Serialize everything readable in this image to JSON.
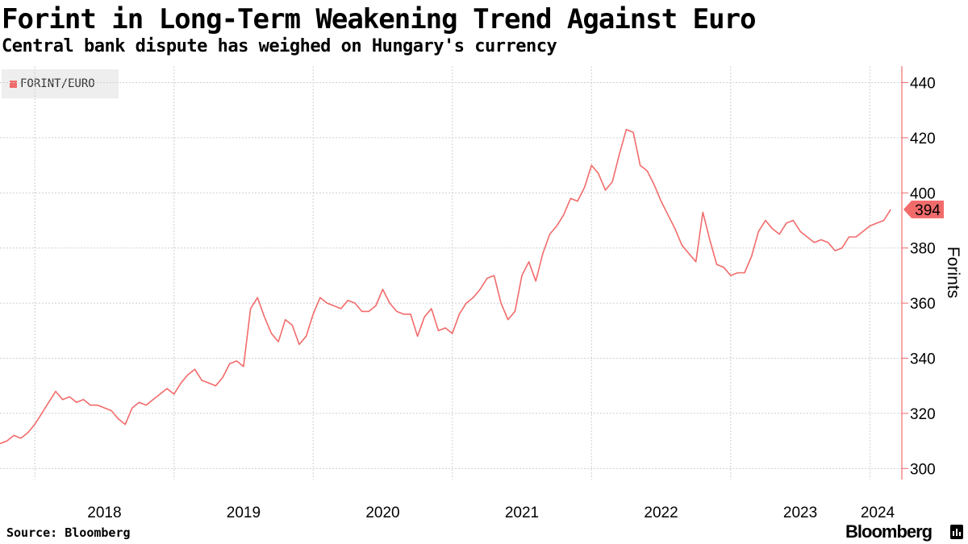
{
  "header": {
    "title": "Forint in Long-Term Weakening Trend Against Euro",
    "subtitle": "Central bank dispute has weighed on Hungary's currency"
  },
  "legend": {
    "label": "FORINT/EURO",
    "color": "#f26b6b"
  },
  "footer": {
    "source": "Source: Bloomberg",
    "brand": "Bloomberg"
  },
  "chart_data": {
    "type": "line",
    "title": "Forint in Long-Term Weakening Trend Against Euro",
    "subtitle": "Central bank dispute has weighed on Hungary's currency",
    "xlabel": "",
    "ylabel": "Forints",
    "ylim": [
      296,
      446
    ],
    "yticks": [
      300,
      320,
      340,
      360,
      380,
      400,
      420,
      440
    ],
    "xticks": [
      "2018",
      "2019",
      "2020",
      "2021",
      "2022",
      "2023",
      "2024"
    ],
    "x_range": [
      2017.75,
      2024.23
    ],
    "grid": true,
    "legend_position": "top-left",
    "last_value_label": "394",
    "line_color": "#f26b6b",
    "series": [
      {
        "name": "FORINT/EURO",
        "x": [
          2017.75,
          2017.8,
          2017.85,
          2017.9,
          2017.95,
          2018.0,
          2018.05,
          2018.1,
          2018.15,
          2018.2,
          2018.25,
          2018.3,
          2018.35,
          2018.4,
          2018.45,
          2018.5,
          2018.55,
          2018.6,
          2018.65,
          2018.7,
          2018.75,
          2018.8,
          2018.85,
          2018.9,
          2018.95,
          2019.0,
          2019.05,
          2019.1,
          2019.15,
          2019.2,
          2019.25,
          2019.3,
          2019.35,
          2019.4,
          2019.45,
          2019.5,
          2019.55,
          2019.6,
          2019.65,
          2019.7,
          2019.75,
          2019.8,
          2019.85,
          2019.9,
          2019.95,
          2020.0,
          2020.05,
          2020.1,
          2020.15,
          2020.2,
          2020.25,
          2020.3,
          2020.35,
          2020.4,
          2020.45,
          2020.5,
          2020.55,
          2020.6,
          2020.65,
          2020.7,
          2020.75,
          2020.8,
          2020.85,
          2020.9,
          2020.95,
          2021.0,
          2021.05,
          2021.1,
          2021.15,
          2021.2,
          2021.25,
          2021.3,
          2021.35,
          2021.4,
          2021.45,
          2021.5,
          2021.55,
          2021.6,
          2021.65,
          2021.7,
          2021.75,
          2021.8,
          2021.85,
          2021.9,
          2021.95,
          2022.0,
          2022.05,
          2022.1,
          2022.15,
          2022.2,
          2022.25,
          2022.3,
          2022.35,
          2022.4,
          2022.45,
          2022.5,
          2022.55,
          2022.6,
          2022.65,
          2022.7,
          2022.75,
          2022.8,
          2022.85,
          2022.9,
          2022.95,
          2023.0,
          2023.05,
          2023.1,
          2023.15,
          2023.2,
          2023.25,
          2023.3,
          2023.35,
          2023.4,
          2023.45,
          2023.5,
          2023.55,
          2023.6,
          2023.65,
          2023.7,
          2023.75,
          2023.8,
          2023.85,
          2023.9,
          2023.95,
          2024.0,
          2024.05,
          2024.1,
          2024.15
        ],
        "values": [
          309,
          310,
          312,
          311,
          313,
          316,
          320,
          324,
          328,
          325,
          326,
          324,
          325,
          323,
          323,
          322,
          321,
          318,
          316,
          322,
          324,
          323,
          325,
          327,
          329,
          327,
          331,
          334,
          336,
          332,
          331,
          330,
          333,
          338,
          339,
          337,
          358,
          362,
          355,
          349,
          346,
          354,
          352,
          345,
          348,
          356,
          362,
          360,
          359,
          358,
          361,
          360,
          357,
          357,
          359,
          365,
          360,
          357,
          356,
          356,
          348,
          355,
          358,
          350,
          351,
          349,
          356,
          360,
          362,
          365,
          369,
          370,
          360,
          354,
          357,
          370,
          375,
          368,
          378,
          385,
          388,
          392,
          398,
          397,
          402,
          410,
          407,
          401,
          404,
          414,
          423,
          422,
          410,
          408,
          403,
          397,
          392,
          387,
          381,
          378,
          375,
          393,
          383,
          374,
          373,
          370,
          371,
          371,
          377,
          386,
          390,
          387,
          385,
          389,
          390,
          386,
          384,
          382,
          383,
          382,
          379,
          380,
          384,
          384,
          386,
          388,
          389,
          390,
          394
        ]
      }
    ]
  }
}
